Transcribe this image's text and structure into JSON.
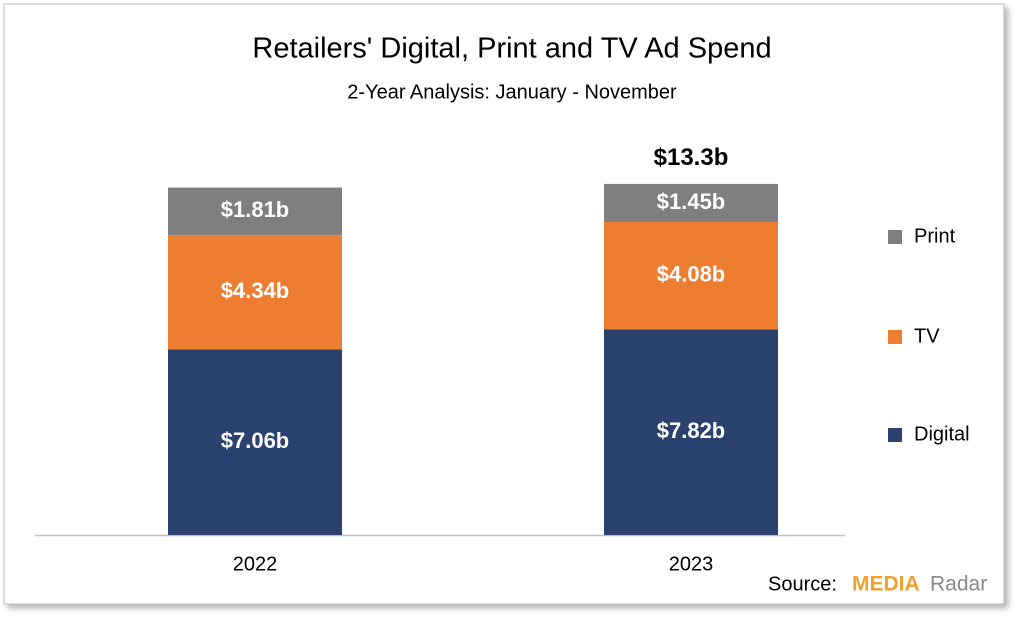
{
  "chart_data": {
    "type": "stacked_bar",
    "title": "Retailers' Digital, Print and TV Ad Spend",
    "subtitle": "2-Year Analysis: January - November",
    "categories": [
      "2022",
      "2023"
    ],
    "series": [
      {
        "name": "Digital",
        "color": "#2b4270",
        "values": [
          7.06,
          7.82
        ],
        "value_labels": [
          "$7.06b",
          "$7.82b"
        ]
      },
      {
        "name": "TV",
        "color": "#ed7d31",
        "values": [
          4.34,
          4.08
        ],
        "value_labels": [
          "$4.34b",
          "$4.08b"
        ]
      },
      {
        "name": "Print",
        "color": "#7f7f7f",
        "values": [
          1.81,
          1.45
        ],
        "value_labels": [
          "$1.81b",
          "$1.45b"
        ]
      }
    ],
    "total_annotation": {
      "category": 1,
      "value": 13.3,
      "label": "$13.3b"
    },
    "legend": "right",
    "source": {
      "prefix": "Source:",
      "brand_a": "MEDIA",
      "brand_b": "Radar"
    }
  }
}
